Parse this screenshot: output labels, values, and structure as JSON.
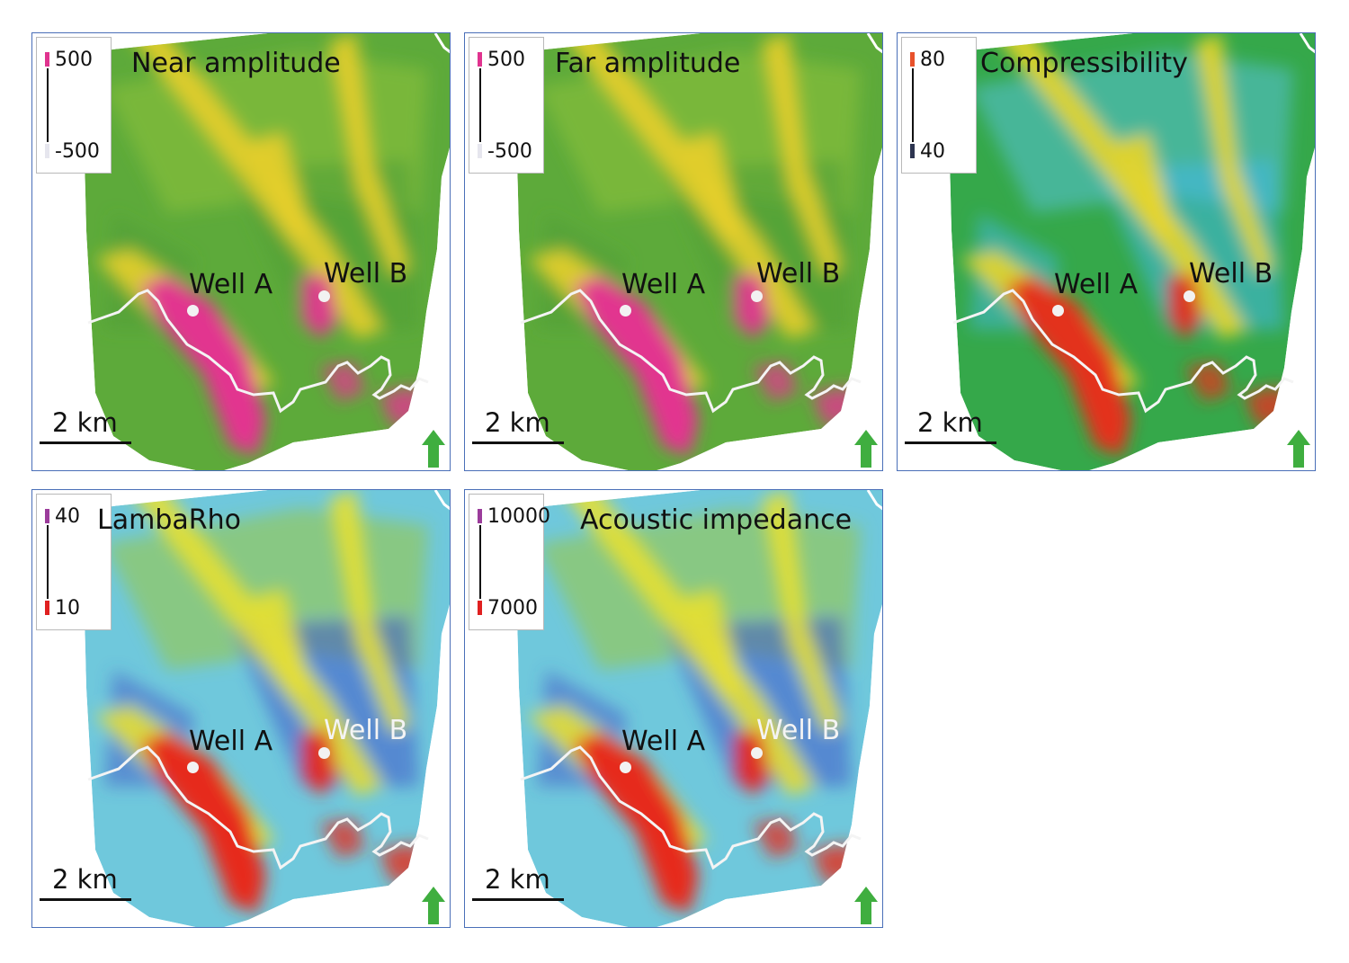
{
  "panels": [
    {
      "title": "Near amplitude",
      "legend": {
        "max": "500",
        "min": "-500",
        "max_color": "#e0338f",
        "min_color": "#e6e6ee"
      },
      "palette": "amplitude",
      "scale_label": "2 km",
      "wells": [
        {
          "label": "Well A",
          "color": "#111111"
        },
        {
          "label": "Well B",
          "color": "#111111"
        }
      ]
    },
    {
      "title": "Far amplitude",
      "legend": {
        "max": "500",
        "min": "-500",
        "max_color": "#e0338f",
        "min_color": "#e6e6ee"
      },
      "palette": "amplitude",
      "scale_label": "2 km",
      "wells": [
        {
          "label": "Well A",
          "color": "#111111"
        },
        {
          "label": "Well B",
          "color": "#111111"
        }
      ]
    },
    {
      "title": "Compressibility",
      "legend": {
        "max": "80",
        "min": "40",
        "max_color": "#e8512b",
        "min_color": "#2d3550"
      },
      "palette": "compressibility",
      "scale_label": "2 km",
      "wells": [
        {
          "label": "Well A",
          "color": "#111111"
        },
        {
          "label": "Well B",
          "color": "#111111"
        }
      ]
    },
    {
      "title": "LambaRho",
      "legend": {
        "max": "40",
        "min": "10",
        "max_color": "#9b3c9b",
        "min_color": "#e02020"
      },
      "palette": "impedance",
      "scale_label": "2 km",
      "wells": [
        {
          "label": "Well A",
          "color": "#111111"
        },
        {
          "label": "Well B",
          "color": "#f4f4f4"
        }
      ]
    },
    {
      "title": "Acoustic impedance",
      "legend": {
        "max": "10000",
        "min": "7000",
        "max_color": "#9b3c9b",
        "min_color": "#e02020"
      },
      "palette": "impedance",
      "scale_label": "2 km",
      "wells": [
        {
          "label": "Well A",
          "color": "#111111"
        },
        {
          "label": "Well B",
          "color": "#f4f4f4"
        }
      ]
    }
  ],
  "palettes": {
    "amplitude": {
      "background": "#5daa3a",
      "mid": "#8fc23c",
      "band": "#e8cf2a",
      "hot": "#e2368f",
      "low": "#4f9e36"
    },
    "compressibility": {
      "background": "#35a84a",
      "mid": "#56c1d8",
      "band": "#e8d52a",
      "hot": "#e3301e",
      "low": "#3fb8e6"
    },
    "impedance": {
      "background": "#6fc8dc",
      "mid": "#9dc83a",
      "band": "#e6e034",
      "hot": "#e62a1c",
      "low": "#3f57c8"
    }
  },
  "colors": {
    "frame": "#4a6fb8",
    "north_arrow": "#3fae3f",
    "boundary_line": "#f4f4f4"
  }
}
